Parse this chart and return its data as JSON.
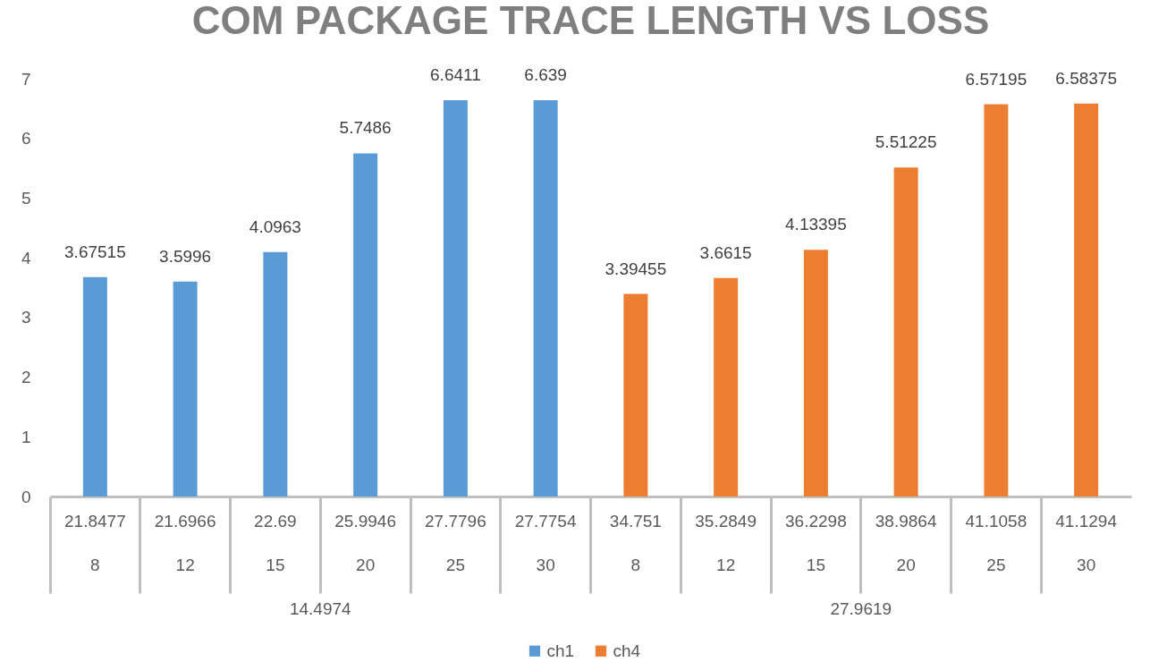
{
  "chart_data": {
    "type": "bar",
    "title": "COM  PACKAGE TRACE LENGTH VS LOSS",
    "categories": [
      "21.8477\n8",
      "21.6966\n12",
      "22.69\n15",
      "25.9946\n20",
      "27.7796\n25",
      "27.7754\n30",
      "34.751\n8",
      "35.2849\n12",
      "36.2298\n15",
      "38.9864\n20",
      "41.1058\n25",
      "41.1294\n30"
    ],
    "series": [
      {
        "name": "ch1",
        "color": "#5b9bd5",
        "values": [
          3.67515,
          3.5996,
          4.0963,
          5.7486,
          6.6411,
          6.639,
          null,
          null,
          null,
          null,
          null,
          null
        ]
      },
      {
        "name": "ch4",
        "color": "#ed7d31",
        "values": [
          null,
          null,
          null,
          null,
          null,
          null,
          3.39455,
          3.6615,
          4.13395,
          5.51225,
          6.57195,
          6.58375
        ]
      }
    ],
    "ylim": [
      0,
      7
    ],
    "yticks": [
      0,
      1,
      2,
      3,
      4,
      5,
      6,
      7
    ],
    "data_labels": true,
    "legend": "bottom",
    "annotations": [
      "14.4974",
      "27.9619"
    ]
  }
}
